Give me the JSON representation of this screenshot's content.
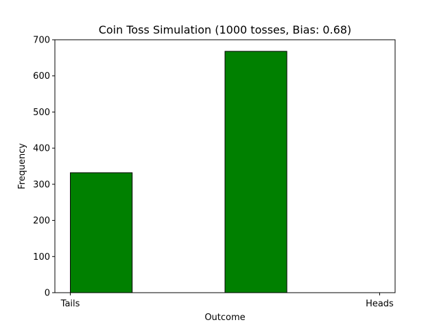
{
  "chart_data": {
    "type": "bar",
    "title": "Coin Toss Simulation (1000 tosses, Bias: 0.68)",
    "xlabel": "Outcome",
    "ylabel": "Frequency",
    "xlim": [
      -0.05,
      1.05
    ],
    "ylim": [
      0,
      700
    ],
    "yticks": [
      0,
      100,
      200,
      300,
      400,
      500,
      600,
      700
    ],
    "xticks": [
      {
        "value": 0,
        "label": "Tails"
      },
      {
        "value": 1,
        "label": "Heads"
      }
    ],
    "bars": [
      {
        "x_start": 0.0,
        "x_end": 0.2,
        "value": 332
      },
      {
        "x_start": 0.5,
        "x_end": 0.7,
        "value": 668
      }
    ],
    "bar_color": "#008000",
    "bar_edge_color": "#000000",
    "grid": false,
    "legend": "none"
  }
}
